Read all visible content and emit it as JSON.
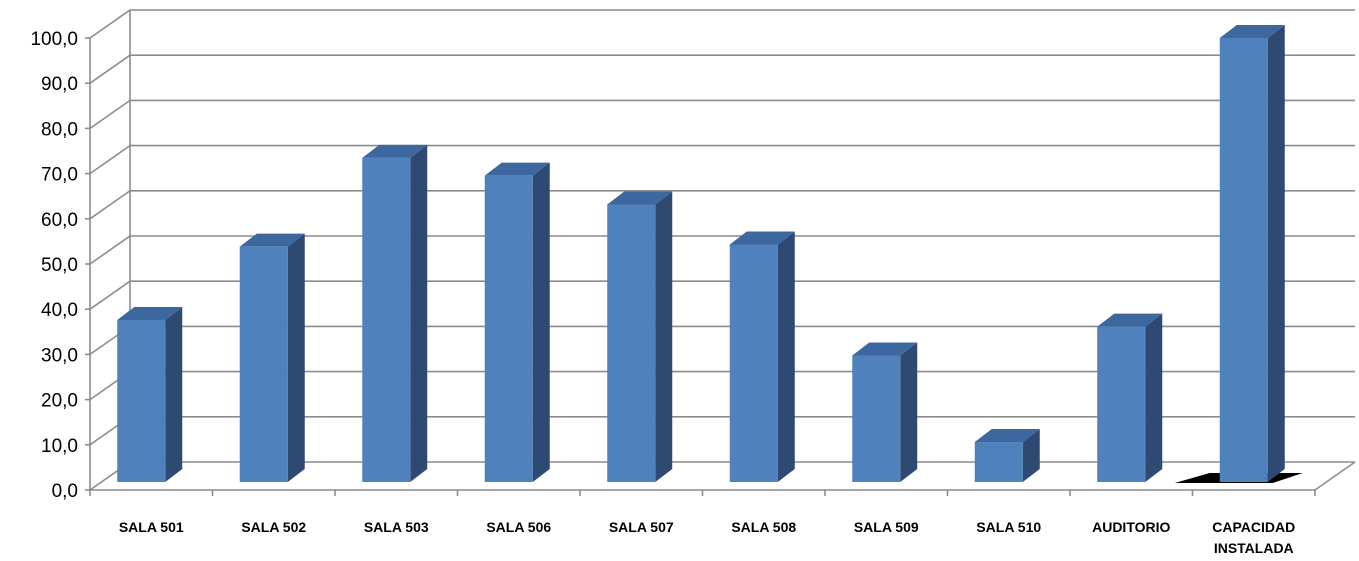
{
  "chart_data": {
    "type": "bar",
    "title": "",
    "xlabel": "",
    "ylabel": "",
    "ylim": [
      0,
      100
    ],
    "yticks": [
      "0,0",
      "10,0",
      "20,0",
      "30,0",
      "40,0",
      "50,0",
      "60,0",
      "70,0",
      "80,0",
      "90,0",
      "100,0"
    ],
    "categories": [
      [
        "SALA 501"
      ],
      [
        "SALA 502"
      ],
      [
        "SALA 503"
      ],
      [
        "SALA 506"
      ],
      [
        "SALA 507"
      ],
      [
        "SALA 508"
      ],
      [
        "SALA 509"
      ],
      [
        "SALA 510"
      ],
      [
        "AUDITORIO"
      ],
      [
        "CAPACIDAD",
        "INSTALADA"
      ]
    ],
    "values": [
      36.5,
      53.0,
      73.0,
      69.0,
      62.5,
      53.5,
      28.5,
      9.0,
      35.0,
      100.0
    ],
    "grid": true,
    "legend": "none",
    "style": "3d-clustered-column",
    "colors": {
      "bar_front": "#4F81BD",
      "bar_side": "#2E4A72",
      "bar_top": "#3D679F",
      "grid": "#8C8C8C",
      "floor_shadow": "#000000"
    }
  }
}
